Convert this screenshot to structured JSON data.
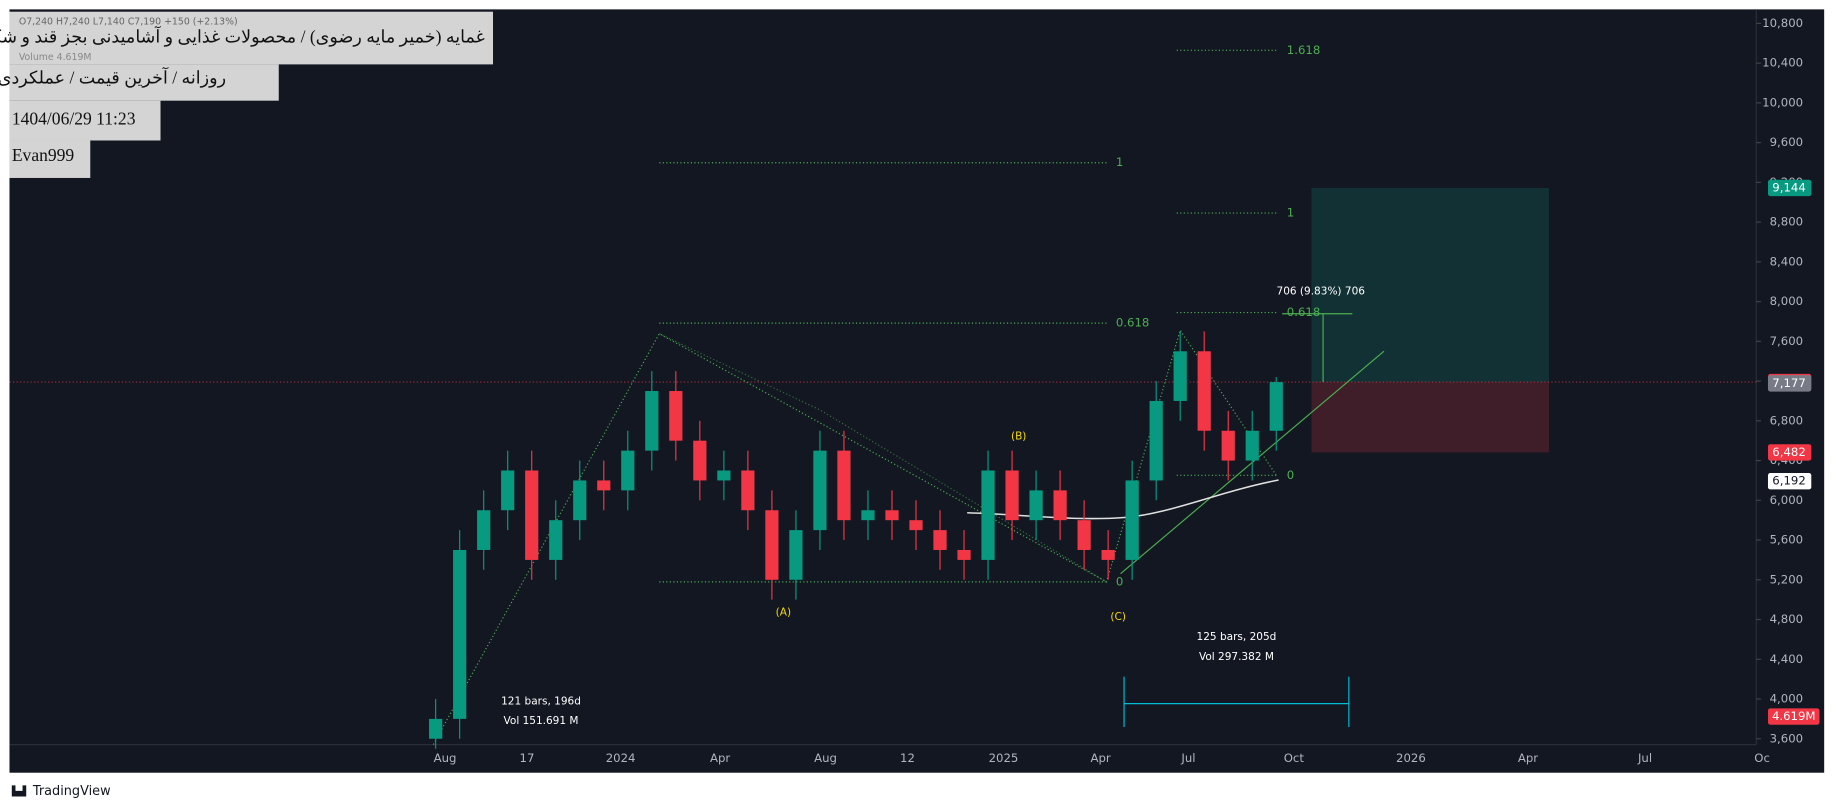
{
  "header": {
    "ohlc": "O7,240 H7,240 L7,140 C7,190 +150 (+2.13%)",
    "volume": "Volume 4.619M",
    "title": "غمایه (خمیر مایه رضوی) / محصولات غذایی و آشامیدنی بجز قند و شکر",
    "subtitle": "روزانه / آخرین قیمت / عملکردی",
    "datetime": "1404/06/29 11:23",
    "author": "Evan999"
  },
  "chart_data": {
    "type": "candlestick",
    "up_color": "#089981",
    "down_color": "#f23645",
    "open": [
      3600,
      3800,
      5500,
      5900,
      6300,
      5400,
      5800,
      6200,
      6100,
      6500,
      7100,
      6600,
      6200,
      6300,
      5900,
      5200,
      5700,
      6500,
      5800,
      5900,
      5800,
      5700,
      5500,
      5400,
      6300,
      5800,
      6100,
      5800,
      5500,
      5400,
      6200,
      7000,
      7500,
      6700,
      6400,
      6700
    ],
    "high": [
      4000,
      5700,
      6100,
      6500,
      6500,
      6000,
      6400,
      6400,
      6700,
      7300,
      7300,
      6800,
      6500,
      6500,
      6100,
      5900,
      6700,
      6700,
      6100,
      6100,
      6000,
      5900,
      5700,
      6500,
      6500,
      6300,
      6300,
      6000,
      5700,
      6400,
      7200,
      7700,
      7700,
      6900,
      6900,
      7240
    ],
    "low": [
      3500,
      3600,
      5300,
      5700,
      5200,
      5200,
      5600,
      5900,
      5900,
      6300,
      6400,
      6000,
      6000,
      5700,
      5000,
      5000,
      5500,
      5600,
      5600,
      5600,
      5500,
      5300,
      5200,
      5200,
      5600,
      5600,
      5600,
      5300,
      5200,
      5200,
      6000,
      6800,
      6500,
      6200,
      6200,
      6500
    ],
    "close": [
      3800,
      5500,
      5900,
      6300,
      5400,
      5800,
      6200,
      6100,
      6500,
      7100,
      6600,
      6200,
      6300,
      5900,
      5200,
      5700,
      6500,
      5800,
      5900,
      5800,
      5700,
      5500,
      5400,
      6300,
      5800,
      6100,
      5800,
      5500,
      5400,
      6200,
      7000,
      7500,
      6700,
      6400,
      6700,
      7190
    ],
    "ylim": [
      3600,
      10800
    ],
    "yticks": [
      {
        "value": 3600,
        "label": "3,600"
      },
      {
        "value": 4000,
        "label": "4,000"
      },
      {
        "value": 4400,
        "label": "4,400"
      },
      {
        "value": 4800,
        "label": "4,800"
      },
      {
        "value": 5200,
        "label": "5,200"
      },
      {
        "value": 5600,
        "label": "5,600"
      },
      {
        "value": 6000,
        "label": "6,000"
      },
      {
        "value": 6400,
        "label": "6,400"
      },
      {
        "value": 6800,
        "label": "6,800"
      },
      {
        "value": 7200,
        "label": "7,200"
      },
      {
        "value": 7600,
        "label": "7,600"
      },
      {
        "value": 8000,
        "label": "8,000"
      },
      {
        "value": 8400,
        "label": "8,400"
      },
      {
        "value": 8800,
        "label": "8,800"
      },
      {
        "value": 9200,
        "label": "9,200"
      },
      {
        "value": 9600,
        "label": "9,600"
      },
      {
        "value": 10000,
        "label": "10,000"
      },
      {
        "value": 10400,
        "label": "10,400"
      },
      {
        "value": 10800,
        "label": "10,800"
      }
    ],
    "xticks": [
      "Aug",
      "17",
      "2024",
      "Apr",
      "Aug",
      "12",
      "2025",
      "Apr",
      "Jul",
      "Oct",
      "2026",
      "Apr",
      "Jul",
      "Oc"
    ],
    "price_markers": [
      {
        "value": 9144,
        "label": "9,144",
        "color": "#089981"
      },
      {
        "value": 7190,
        "label": "7,190",
        "color": "#f23645"
      },
      {
        "value": 7177,
        "label": "7,177",
        "color": "#787b86"
      },
      {
        "value": 6482,
        "label": "6,482",
        "color": "#f23645"
      },
      {
        "value": 6192,
        "label": "6,192",
        "color": "#ffffff"
      }
    ],
    "volume_marker": "4.619M",
    "position": {
      "entry": 7190,
      "target": 9144,
      "stop": 6482
    },
    "fib_labels_1": [
      "1",
      "0.618",
      "0"
    ],
    "fib_labels_2": [
      "1.618",
      "1",
      "0.618",
      "0"
    ],
    "waves": [
      "(A)",
      "(B)",
      "(C)"
    ],
    "measure": "706 (9.83%) 706",
    "range1": [
      "121 bars, 196d",
      "Vol 151.691 M"
    ],
    "range2": [
      "125 bars, 205d",
      "Vol 297.382 M"
    ]
  },
  "footer": "TradingView"
}
